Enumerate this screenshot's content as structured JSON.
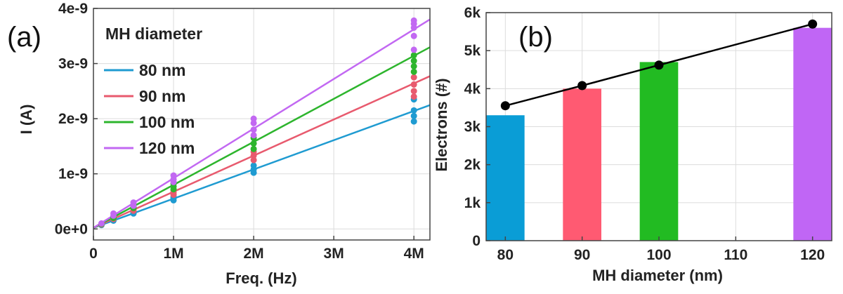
{
  "chart_data": [
    {
      "type": "scatter",
      "panel_label": "(a)",
      "xlabel": "Freq. (Hz)",
      "ylabel": "I (A)",
      "xlim": [
        0,
        4.2
      ],
      "ylim": [
        -0.2,
        4.0
      ],
      "x_ticks": [
        0,
        1,
        2,
        3,
        4
      ],
      "x_tick_labels": [
        "0",
        "1M",
        "2M",
        "3M",
        "4M"
      ],
      "y_ticks": [
        0,
        1,
        2,
        3,
        4
      ],
      "y_tick_labels": [
        "0e+0",
        "1e-9",
        "2e-9",
        "3e-9",
        "4e-9"
      ],
      "grid": true,
      "legend_title": "MH diameter",
      "legend_position": "top-left",
      "series": [
        {
          "name": "80 nm",
          "color": "#1f9bd1",
          "slope": 0.53,
          "intercept": 0.02,
          "points": [
            [
              0.1,
              0.07
            ],
            [
              0.25,
              0.15
            ],
            [
              0.25,
              0.17
            ],
            [
              0.5,
              0.28
            ],
            [
              0.5,
              0.3
            ],
            [
              1,
              0.52
            ],
            [
              1,
              0.56
            ],
            [
              1,
              0.58
            ],
            [
              2,
              1.02
            ],
            [
              2,
              1.08
            ],
            [
              2,
              1.15
            ],
            [
              4,
              1.95
            ],
            [
              4,
              2.05
            ],
            [
              4,
              2.15
            ],
            [
              4,
              2.35
            ]
          ]
        },
        {
          "name": "90 nm",
          "color": "#e85a6e",
          "slope": 0.655,
          "intercept": 0.02,
          "points": [
            [
              0.1,
              0.08
            ],
            [
              0.25,
              0.18
            ],
            [
              0.25,
              0.2
            ],
            [
              0.5,
              0.33
            ],
            [
              0.5,
              0.36
            ],
            [
              1,
              0.62
            ],
            [
              1,
              0.66
            ],
            [
              1,
              0.7
            ],
            [
              2,
              1.25
            ],
            [
              2,
              1.33
            ],
            [
              2,
              1.4
            ],
            [
              4,
              2.4
            ],
            [
              4,
              2.5
            ],
            [
              4,
              2.62
            ],
            [
              4,
              2.75
            ]
          ]
        },
        {
          "name": "100 nm",
          "color": "#2db52d",
          "slope": 0.78,
          "intercept": 0.02,
          "points": [
            [
              0.1,
              0.09
            ],
            [
              0.25,
              0.2
            ],
            [
              0.25,
              0.22
            ],
            [
              0.5,
              0.38
            ],
            [
              0.5,
              0.41
            ],
            [
              1,
              0.72
            ],
            [
              1,
              0.77
            ],
            [
              1,
              0.82
            ],
            [
              2,
              1.45
            ],
            [
              2,
              1.55
            ],
            [
              2,
              1.65
            ],
            [
              4,
              2.85
            ],
            [
              4,
              2.95
            ],
            [
              4,
              3.05
            ],
            [
              4,
              3.15
            ]
          ]
        },
        {
          "name": "120 nm",
          "color": "#c268f2",
          "slope": 0.9,
          "intercept": 0.02,
          "points": [
            [
              0.1,
              0.1
            ],
            [
              0.25,
              0.24
            ],
            [
              0.25,
              0.28
            ],
            [
              0.5,
              0.42
            ],
            [
              0.5,
              0.48
            ],
            [
              1,
              0.85
            ],
            [
              1,
              0.9
            ],
            [
              1,
              0.97
            ],
            [
              2,
              1.7
            ],
            [
              2,
              1.8
            ],
            [
              2,
              1.92
            ],
            [
              2,
              2.0
            ],
            [
              4,
              3.25
            ],
            [
              4,
              3.5
            ],
            [
              4,
              3.65
            ],
            [
              4,
              3.72
            ],
            [
              4,
              3.78
            ]
          ]
        }
      ]
    },
    {
      "type": "bar",
      "panel_label": "(b)",
      "xlabel": "MH diameter (nm)",
      "ylabel": "Electrons (#)",
      "xlim": [
        77.5,
        122.5
      ],
      "ylim": [
        0,
        6000
      ],
      "x_ticks": [
        80,
        90,
        100,
        110,
        120
      ],
      "x_tick_labels": [
        "80",
        "90",
        "100",
        "110",
        "120"
      ],
      "y_ticks": [
        0,
        1000,
        2000,
        3000,
        4000,
        5000,
        6000
      ],
      "y_tick_labels": [
        "0",
        "1k",
        "2k",
        "3k",
        "4k",
        "5k",
        "6k"
      ],
      "grid": true,
      "bars": [
        {
          "x": 80,
          "value": 3300,
          "color": "#0a9dd6"
        },
        {
          "x": 90,
          "value": 4000,
          "color": "#ff5a72"
        },
        {
          "x": 100,
          "value": 4700,
          "color": "#22bb22"
        },
        {
          "x": 120,
          "value": 5600,
          "color": "#c066f5"
        }
      ],
      "line_points": [
        [
          80,
          3550
        ],
        [
          90,
          4080
        ],
        [
          100,
          4620
        ],
        [
          120,
          5700
        ]
      ],
      "line_color": "#000000"
    }
  ]
}
